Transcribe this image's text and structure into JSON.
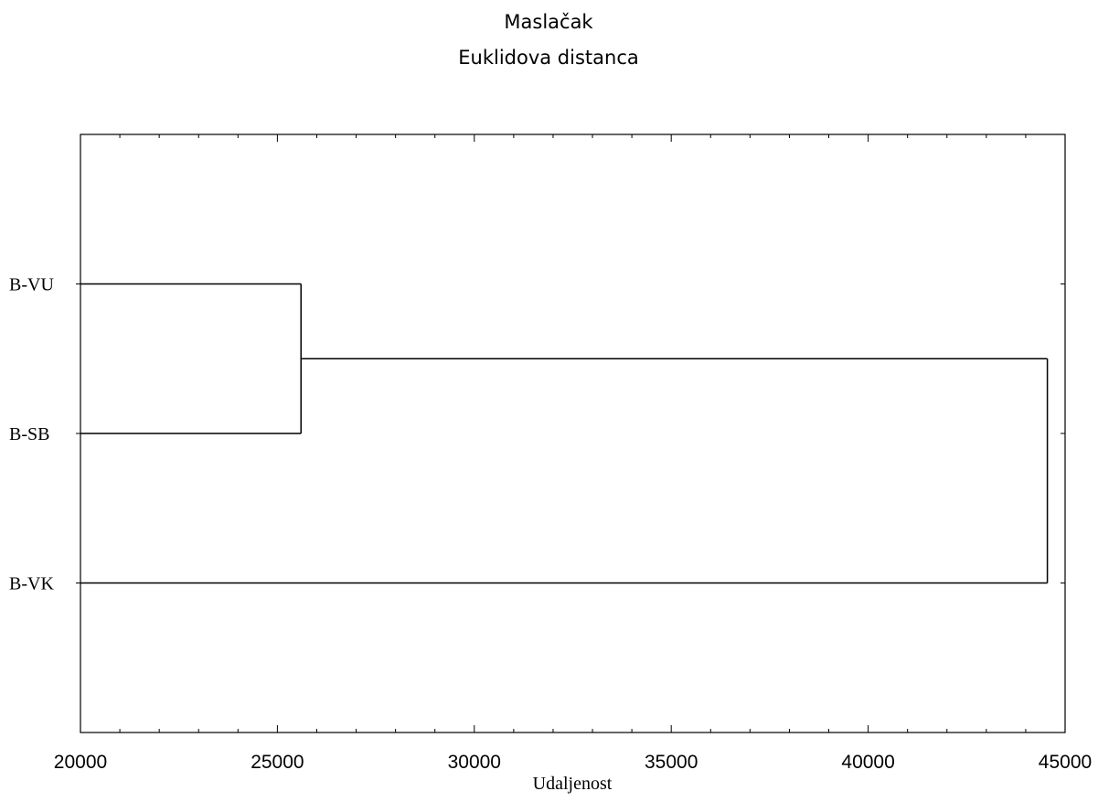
{
  "chart_data": {
    "type": "dendrogram",
    "title": "Maslačak",
    "subtitle": "Euklidova distanca",
    "xlabel": "Udaljenost",
    "ylabel": "",
    "xlim": [
      20000,
      45000
    ],
    "x_major_ticks": [
      20000,
      25000,
      30000,
      35000,
      40000,
      45000
    ],
    "x_tick_labels": [
      "20000",
      "25000",
      "30000",
      "35000",
      "40000",
      "45000"
    ],
    "x_minor_step": 1000,
    "leaves": [
      "B-VU",
      "B-SB",
      "B-VK"
    ],
    "merges": [
      {
        "members": [
          "B-VU",
          "B-SB"
        ],
        "distance": 25600
      },
      {
        "members": [
          "B-VU",
          "B-SB",
          "B-VK"
        ],
        "distance": 44550
      }
    ],
    "grid": false,
    "legend": "none"
  }
}
